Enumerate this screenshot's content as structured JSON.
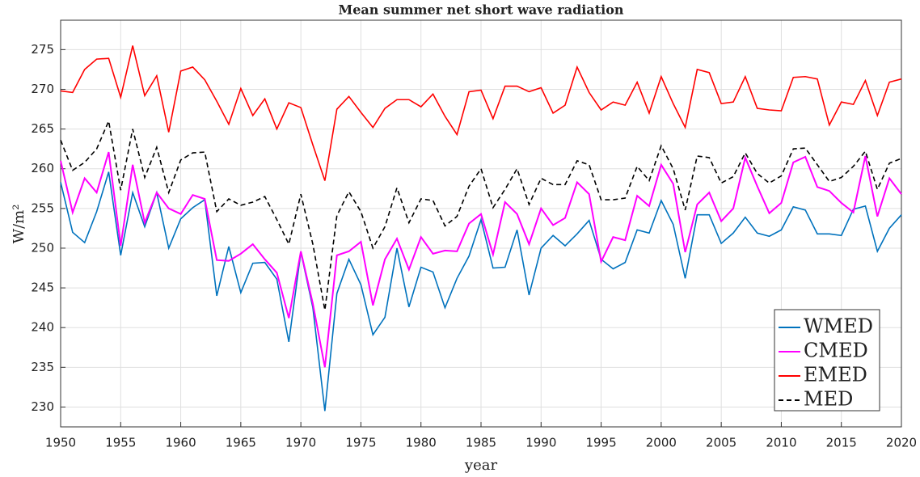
{
  "chart_data": {
    "type": "line",
    "title": "Mean summer net short wave radiation",
    "xlabel": "year",
    "ylabel": "W/m²",
    "x": [
      1950,
      1951,
      1952,
      1953,
      1954,
      1955,
      1956,
      1957,
      1958,
      1959,
      1960,
      1961,
      1962,
      1963,
      1964,
      1965,
      1966,
      1967,
      1968,
      1969,
      1970,
      1971,
      1972,
      1973,
      1974,
      1975,
      1976,
      1977,
      1978,
      1979,
      1980,
      1981,
      1982,
      1983,
      1984,
      1985,
      1986,
      1987,
      1988,
      1989,
      1990,
      1991,
      1992,
      1993,
      1994,
      1995,
      1996,
      1997,
      1998,
      1999,
      2000,
      2001,
      2002,
      2003,
      2004,
      2005,
      2006,
      2007,
      2008,
      2009,
      2010,
      2011,
      2012,
      2013,
      2014,
      2015,
      2016,
      2017,
      2018,
      2019,
      2020
    ],
    "xlim": [
      1950,
      2020
    ],
    "xticks": [
      1950,
      1955,
      1960,
      1965,
      1970,
      1975,
      1980,
      1985,
      1990,
      1995,
      2000,
      2005,
      2010,
      2015,
      2020
    ],
    "ylim": [
      227.5,
      278.7
    ],
    "yticks": [
      230,
      235,
      240,
      245,
      250,
      255,
      260,
      265,
      270,
      275
    ],
    "grid": true,
    "legend": "lower right",
    "series": [
      {
        "name": "WMED",
        "color": "#0072bd",
        "values": [
          258.3,
          252.0,
          250.7,
          254.6,
          259.6,
          249.1,
          257.0,
          252.7,
          257.0,
          250.0,
          253.7,
          255.1,
          256.1,
          244.0,
          250.2,
          244.4,
          248.1,
          248.2,
          246.1,
          238.2,
          249.5,
          242.5,
          229.5,
          244.3,
          248.6,
          245.4,
          239.1,
          241.3,
          250.0,
          242.6,
          247.6,
          247.0,
          242.5,
          246.2,
          249.0,
          253.6,
          247.5,
          247.6,
          252.3,
          244.1,
          250.0,
          251.6,
          250.3,
          251.8,
          253.5,
          248.6,
          247.4,
          248.2,
          252.3,
          251.9,
          256.0,
          253.0,
          246.2,
          254.2,
          254.2,
          250.6,
          251.9,
          253.9,
          251.9,
          251.5,
          252.3,
          255.2,
          254.8,
          251.8,
          251.8,
          251.6,
          254.9,
          255.3,
          249.6,
          252.5,
          254.2
        ]
      },
      {
        "name": "CMED",
        "color": "#ff00ff",
        "values": [
          261.0,
          254.5,
          258.8,
          257.0,
          262.1,
          250.3,
          260.5,
          253.2,
          257.0,
          255.0,
          254.3,
          256.7,
          256.2,
          248.5,
          248.4,
          249.3,
          250.5,
          248.6,
          246.9,
          241.2,
          249.6,
          243.0,
          235.0,
          249.1,
          249.6,
          250.8,
          242.8,
          248.6,
          251.2,
          247.3,
          251.4,
          249.3,
          249.7,
          249.6,
          253.1,
          254.3,
          249.2,
          255.8,
          254.3,
          250.5,
          255.0,
          252.9,
          253.8,
          258.3,
          256.8,
          248.3,
          251.4,
          251.0,
          256.6,
          255.3,
          260.5,
          258.1,
          249.5,
          255.5,
          257.0,
          253.4,
          255.0,
          261.4,
          257.8,
          254.4,
          255.7,
          260.8,
          261.5,
          257.7,
          257.2,
          255.7,
          254.5,
          261.6,
          254.0,
          258.8,
          256.8
        ]
      },
      {
        "name": "EMED",
        "color": "#ff0000",
        "values": [
          269.8,
          269.6,
          272.5,
          273.8,
          273.9,
          269.0,
          275.5,
          269.2,
          271.7,
          264.6,
          272.3,
          272.8,
          271.2,
          268.5,
          265.6,
          270.1,
          266.7,
          268.8,
          265.0,
          268.3,
          267.7,
          263.0,
          258.5,
          267.5,
          269.1,
          267.1,
          265.2,
          267.6,
          268.7,
          268.7,
          267.8,
          269.4,
          266.6,
          264.3,
          269.7,
          269.9,
          266.3,
          270.4,
          270.4,
          269.7,
          270.2,
          267.0,
          268.0,
          272.8,
          269.6,
          267.4,
          268.4,
          268.0,
          270.9,
          267.0,
          271.6,
          268.2,
          265.2,
          272.5,
          272.1,
          268.2,
          268.4,
          271.6,
          267.6,
          267.4,
          267.3,
          271.5,
          271.6,
          271.3,
          265.5,
          268.4,
          268.1,
          271.1,
          266.7,
          270.9,
          271.3
        ]
      },
      {
        "name": "MED",
        "color": "#000000",
        "dashed": true,
        "values": [
          263.6,
          259.8,
          260.8,
          262.5,
          266.0,
          257.3,
          265.0,
          258.9,
          262.7,
          257.0,
          261.1,
          262.0,
          262.1,
          254.6,
          256.2,
          255.4,
          255.8,
          256.5,
          253.6,
          250.5,
          256.8,
          250.5,
          242.2,
          254.1,
          257.1,
          254.6,
          250.0,
          252.7,
          257.6,
          253.2,
          256.2,
          256.0,
          252.8,
          254.0,
          257.8,
          260.0,
          255.1,
          257.4,
          260.0,
          255.5,
          258.8,
          258.0,
          258.0,
          261.0,
          260.5,
          256.1,
          256.1,
          256.3,
          260.3,
          258.5,
          262.9,
          260.0,
          254.8,
          261.6,
          261.4,
          258.2,
          259.0,
          262.0,
          259.4,
          258.2,
          259.1,
          262.5,
          262.6,
          260.5,
          258.4,
          258.9,
          260.3,
          262.2,
          257.4,
          260.7,
          261.3
        ]
      }
    ]
  }
}
